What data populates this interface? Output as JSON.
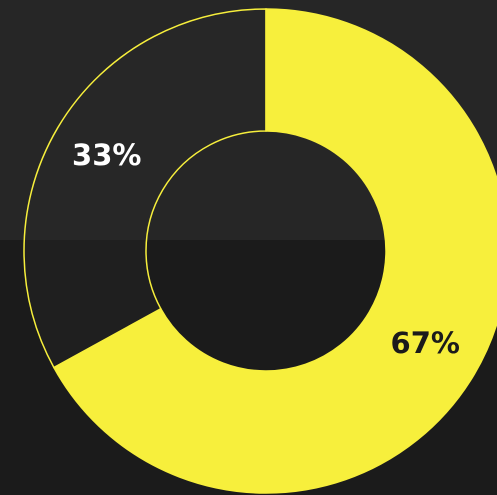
{
  "chart_data": {
    "type": "pie",
    "variant": "donut",
    "slices": [
      {
        "label": "67%",
        "value": 67,
        "color": "#f7ef3c",
        "text_color": "#1b1b1b"
      },
      {
        "label": "33%",
        "value": 33,
        "color": "#2a2a2a",
        "text_color": "#ffffff"
      }
    ],
    "legend": "none"
  },
  "colors": {
    "accent": "#f7ef3c",
    "background": "#1d1d1d"
  }
}
